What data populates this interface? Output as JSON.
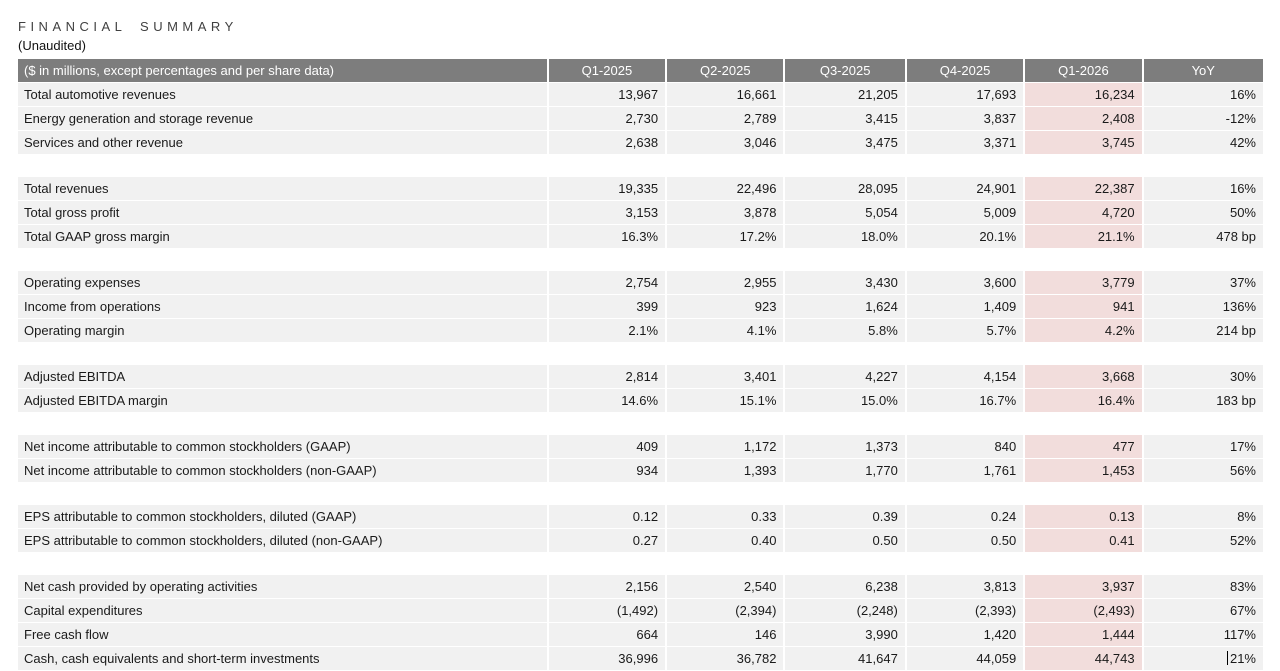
{
  "title": "FINANCIAL SUMMARY",
  "subtitle": "(Unaudited)",
  "table": {
    "header": {
      "label": "($ in millions, except percentages and per share data)",
      "columns": [
        "Q1-2025",
        "Q2-2025",
        "Q3-2025",
        "Q4-2025",
        "Q1-2026",
        "YoY"
      ]
    },
    "highlight_column": "Q1-2026",
    "colors": {
      "header_bg": "#7d7d7d",
      "header_text": "#ffffff",
      "row_bg": "#f1f1f1",
      "highlight_bg": "#f2dddc"
    },
    "groups": [
      {
        "rows": [
          {
            "label": "Total automotive revenues",
            "values": [
              "13,967",
              "16,661",
              "21,205",
              "17,693",
              "16,234",
              "16%"
            ]
          },
          {
            "label": "Energy generation and storage revenue",
            "values": [
              "2,730",
              "2,789",
              "3,415",
              "3,837",
              "2,408",
              "-12%"
            ]
          },
          {
            "label": "Services and other revenue",
            "values": [
              "2,638",
              "3,046",
              "3,475",
              "3,371",
              "3,745",
              "42%"
            ]
          }
        ]
      },
      {
        "rows": [
          {
            "label": "Total revenues",
            "values": [
              "19,335",
              "22,496",
              "28,095",
              "24,901",
              "22,387",
              "16%"
            ]
          },
          {
            "label": "Total gross profit",
            "values": [
              "3,153",
              "3,878",
              "5,054",
              "5,009",
              "4,720",
              "50%"
            ]
          },
          {
            "label": "Total GAAP gross margin",
            "values": [
              "16.3%",
              "17.2%",
              "18.0%",
              "20.1%",
              "21.1%",
              "478 bp"
            ]
          }
        ]
      },
      {
        "rows": [
          {
            "label": "Operating expenses",
            "values": [
              "2,754",
              "2,955",
              "3,430",
              "3,600",
              "3,779",
              "37%"
            ]
          },
          {
            "label": "Income from operations",
            "values": [
              "399",
              "923",
              "1,624",
              "1,409",
              "941",
              "136%"
            ]
          },
          {
            "label": "Operating margin",
            "values": [
              "2.1%",
              "4.1%",
              "5.8%",
              "5.7%",
              "4.2%",
              "214 bp"
            ]
          }
        ]
      },
      {
        "rows": [
          {
            "label": "Adjusted EBITDA",
            "values": [
              "2,814",
              "3,401",
              "4,227",
              "4,154",
              "3,668",
              "30%"
            ]
          },
          {
            "label": "Adjusted EBITDA margin",
            "values": [
              "14.6%",
              "15.1%",
              "15.0%",
              "16.7%",
              "16.4%",
              "183 bp"
            ]
          }
        ]
      },
      {
        "rows": [
          {
            "label": "Net income attributable to common stockholders (GAAP)",
            "values": [
              "409",
              "1,172",
              "1,373",
              "840",
              "477",
              "17%"
            ]
          },
          {
            "label": "Net income attributable to common stockholders (non-GAAP)",
            "values": [
              "934",
              "1,393",
              "1,770",
              "1,761",
              "1,453",
              "56%"
            ]
          }
        ]
      },
      {
        "rows": [
          {
            "label": "EPS attributable to common stockholders, diluted (GAAP)",
            "values": [
              "0.12",
              "0.33",
              "0.39",
              "0.24",
              "0.13",
              "8%"
            ]
          },
          {
            "label": "EPS attributable to common stockholders, diluted (non-GAAP)",
            "values": [
              "0.27",
              "0.40",
              "0.50",
              "0.50",
              "0.41",
              "52%"
            ]
          }
        ]
      },
      {
        "rows": [
          {
            "label": "Net cash provided by operating activities",
            "values": [
              "2,156",
              "2,540",
              "6,238",
              "3,813",
              "3,937",
              "83%"
            ]
          },
          {
            "label": "Capital expenditures",
            "values": [
              "(1,492)",
              "(2,394)",
              "(2,248)",
              "(2,393)",
              "(2,493)",
              "67%"
            ]
          },
          {
            "label": "Free cash flow",
            "values": [
              "664",
              "146",
              "3,990",
              "1,420",
              "1,444",
              "117%"
            ]
          },
          {
            "label": "Cash, cash equivalents and short-term investments",
            "values": [
              "36,996",
              "36,782",
              "41,647",
              "44,059",
              "44,743",
              "21%"
            ],
            "text_cursor_before_yoy": true
          }
        ]
      }
    ]
  }
}
